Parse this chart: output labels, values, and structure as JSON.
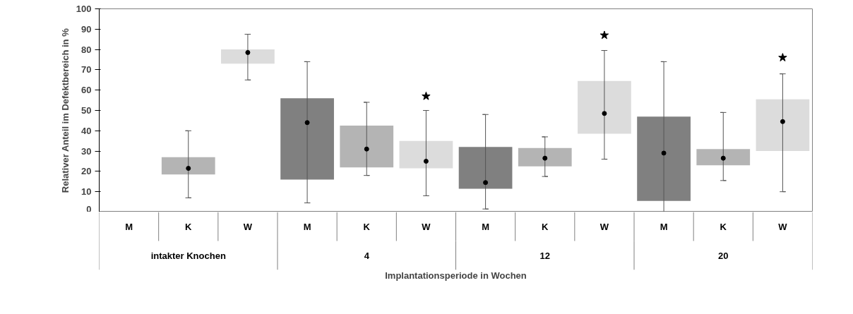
{
  "chart_data": {
    "type": "bar",
    "ylabel": "Relativer Anteil im Defektbereich in %",
    "xlabel": "Implantationsperiode in Wochen",
    "categories": [
      "M",
      "K",
      "W",
      "M",
      "K",
      "W",
      "M",
      "K",
      "W",
      "M",
      "K",
      "W"
    ],
    "ylim": [
      0,
      100
    ],
    "yticks": [
      0,
      10,
      20,
      30,
      40,
      50,
      60,
      70,
      80,
      90,
      100
    ],
    "grid": false,
    "series": [
      {
        "values": [
          null,
          8.5,
          7,
          40,
          20.5,
          13.5,
          20.5,
          9,
          26,
          41.5,
          8,
          25.5
        ],
        "base": [
          null,
          18.5,
          73,
          16,
          22,
          21.5,
          11.5,
          22.5,
          38.5,
          5.5,
          23,
          30
        ],
        "colors": [
          "#808080",
          "#b4b4b4",
          "#dcdcdc",
          "#808080",
          "#b4b4b4",
          "#dcdcdc",
          "#808080",
          "#b4b4b4",
          "#dcdcdc",
          "#808080",
          "#b4b4b4",
          "#dcdcdc"
        ]
      },
      {
        "type": "scatter",
        "color": "#000000",
        "marker": "circle",
        "values": [
          null,
          21.5,
          78.5,
          44,
          31,
          25,
          14.5,
          26.5,
          48.5,
          29,
          26.5,
          44.5
        ],
        "errors": [
          null,
          [
            7,
            40
          ],
          [
            65,
            87.5
          ],
          [
            4.5,
            74
          ],
          [
            18,
            54
          ],
          [
            8,
            50
          ],
          [
            1.5,
            48
          ],
          [
            17.5,
            37
          ],
          [
            26,
            79.5
          ],
          [
            0,
            74
          ],
          [
            15.5,
            49
          ],
          [
            10,
            68
          ]
        ]
      },
      {
        "type": "scatter",
        "color": "#000000",
        "marker": "star",
        "values": [
          null,
          null,
          null,
          null,
          null,
          57,
          null,
          null,
          87,
          null,
          null,
          76
        ]
      }
    ],
    "annotations": [
      "intakter Knochen",
      "4",
      "12",
      "20"
    ]
  }
}
